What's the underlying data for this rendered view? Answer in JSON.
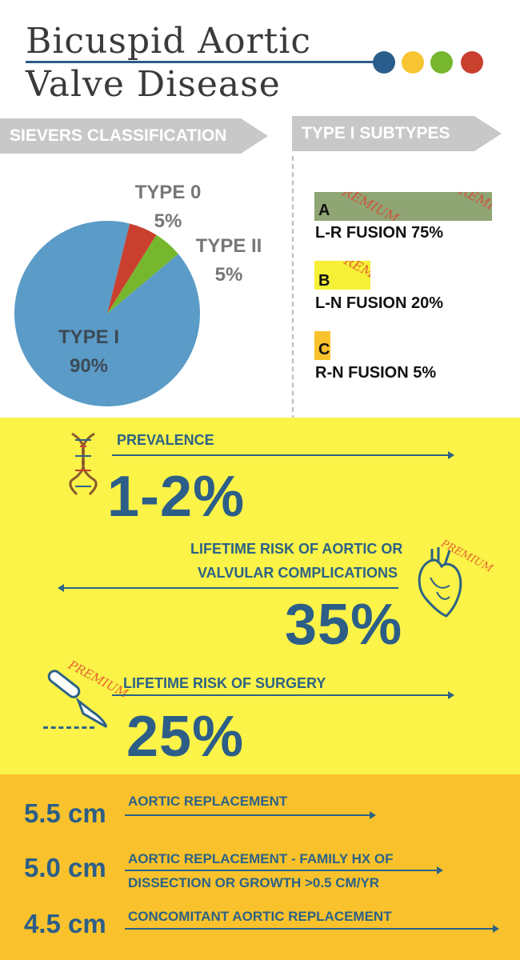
{
  "header": {
    "title_line1": "Bicuspid Aortic",
    "title_line2": "Valve Disease",
    "dot_colors": [
      "#2b5d8c",
      "#f7c531",
      "#77b72e",
      "#c9402f"
    ]
  },
  "sections": {
    "sievers": "SIEVERS CLASSIFICATION",
    "subtypes": "TYPE I SUBTYPES"
  },
  "chart_data": {
    "type": "pie",
    "slices": [
      {
        "label": "TYPE I",
        "value": 90,
        "value_label": "90%",
        "color": "#5b9bc7"
      },
      {
        "label": "TYPE 0",
        "value": 5,
        "value_label": "5%",
        "color": "#c9402f"
      },
      {
        "label": "TYPE II",
        "value": 5,
        "value_label": "5%",
        "color": "#77b72e"
      }
    ]
  },
  "subtypes": [
    {
      "letter": "A",
      "text": "L-R FUSION 75%",
      "color": "#8fa574"
    },
    {
      "letter": "B",
      "text": "L-N FUSION 20%",
      "color": "#f6f037"
    },
    {
      "letter": "C",
      "text": "R-N FUSION 5%",
      "color": "#f9c22c"
    }
  ],
  "watermark": "PREMIUM",
  "stats": [
    {
      "label": "PREVALENCE",
      "value": "1-2%",
      "icon": "dna-icon"
    },
    {
      "label_line1": "LIFETIME RISK OF AORTIC OR",
      "label_line2": "VALVULAR COMPLICATIONS",
      "value": "35%",
      "icon": "heart-icon"
    },
    {
      "label": "LIFETIME RISK OF SURGERY",
      "value": "25%",
      "icon": "scalpel-icon"
    }
  ],
  "thresholds": [
    {
      "size": "5.5 cm",
      "line1": "AORTIC REPLACEMENT",
      "line2": ""
    },
    {
      "size": "5.0 cm",
      "line1": "AORTIC REPLACEMENT - FAMILY HX OF",
      "line2": "DISSECTION OR GROWTH >0.5 CM/YR"
    },
    {
      "size": "4.5 cm",
      "line1": "CONCOMITANT AORTIC REPLACEMENT",
      "line2": ""
    }
  ],
  "colors": {
    "stats_background": "#fbf348",
    "thresholds_background": "#f9c22c",
    "text_blue": "#2c5e87"
  }
}
